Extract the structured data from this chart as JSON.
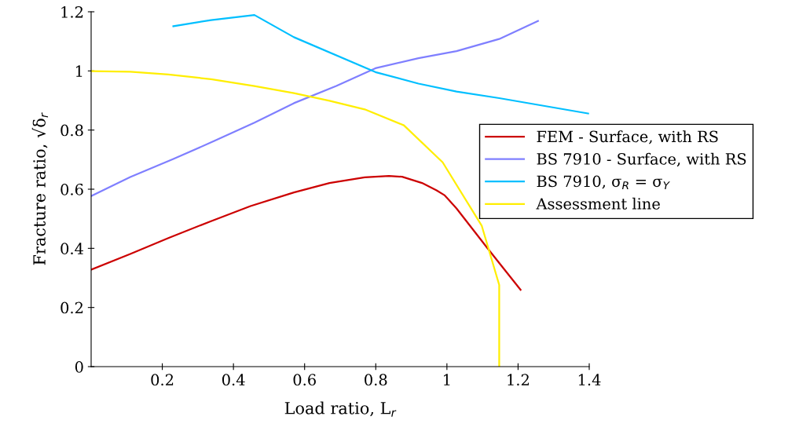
{
  "chart_data": {
    "type": "line",
    "xlabel": "Load ratio, L$_{r}$",
    "ylabel": "Fracture ratio, √δ$_{r}$",
    "xlim": [
      0,
      1.4
    ],
    "ylim": [
      0,
      1.2
    ],
    "xticks": [
      0.2,
      0.4,
      0.6,
      0.8,
      1,
      1.2,
      1.4
    ],
    "yticks": [
      0,
      0.2,
      0.4,
      0.6,
      0.8,
      1,
      1.2
    ],
    "grid": false,
    "legend": "right",
    "marker": "none",
    "line_style": "solid",
    "series": [
      {
        "name": "FEM - Surface, with RS",
        "color": "#cc0000",
        "x": [
          0,
          0.11,
          0.217,
          0.337,
          0.448,
          0.57,
          0.67,
          0.769,
          0.837,
          0.874,
          0.93,
          0.971,
          0.994,
          1.027,
          1.115,
          1.207
        ],
        "values": [
          0.328,
          0.381,
          0.435,
          0.492,
          0.543,
          0.589,
          0.621,
          0.64,
          0.645,
          0.642,
          0.621,
          0.596,
          0.579,
          0.535,
          0.399,
          0.26
        ]
      },
      {
        "name": "BS 7910 - Surface, with RS",
        "color": "#7f7fff",
        "x": [
          0,
          0.11,
          0.231,
          0.346,
          0.459,
          0.57,
          0.689,
          0.799,
          0.92,
          1.027,
          1.147,
          1.256
        ],
        "values": [
          0.577,
          0.641,
          0.702,
          0.763,
          0.825,
          0.891,
          0.949,
          1.009,
          1.043,
          1.067,
          1.108,
          1.169
        ]
      },
      {
        "name": "BS 7910, σ$_{R}$ = σ$_{Y}$",
        "color": "#00bfff",
        "x": [
          0.231,
          0.337,
          0.459,
          0.57,
          0.799,
          0.92,
          1.027,
          1.147,
          1.397
        ],
        "values": [
          1.151,
          1.172,
          1.189,
          1.114,
          0.996,
          0.957,
          0.93,
          0.908,
          0.856
        ]
      },
      {
        "name": "Assessment line",
        "color": "#ffee00",
        "x": [
          0,
          0.11,
          0.217,
          0.337,
          0.459,
          0.57,
          0.67,
          0.769,
          0.879,
          0.988,
          1.098,
          1.147,
          1.147
        ],
        "values": [
          0.999,
          0.997,
          0.988,
          0.972,
          0.949,
          0.925,
          0.899,
          0.87,
          0.816,
          0.691,
          0.476,
          0.276,
          0
        ]
      }
    ]
  }
}
